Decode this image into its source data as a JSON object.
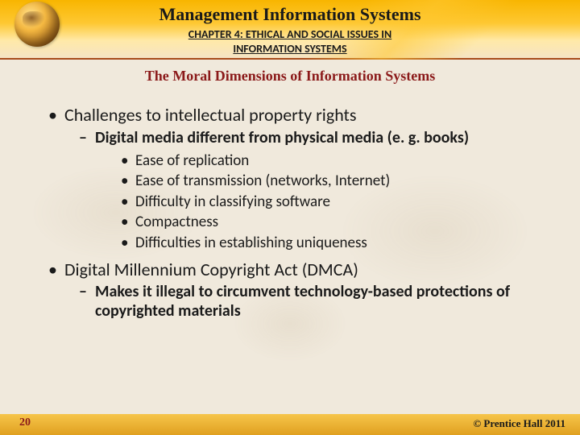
{
  "header": {
    "title": "Management Information Systems",
    "chapter_line1": "CHAPTER 4: ETHICAL AND SOCIAL ISSUES IN",
    "chapter_line2": "INFORMATION SYSTEMS"
  },
  "subtitle": "The Moral Dimensions of Information Systems",
  "bullets": {
    "b1": "Challenges to intellectual property rights",
    "b1_1": "Digital media different from physical media (e. g. books)",
    "b1_1_items": {
      "i1": "Ease of replication",
      "i2": "Ease of transmission (networks, Internet)",
      "i3": "Difficulty in classifying software",
      "i4": "Compactness",
      "i5": "Difficulties in establishing uniqueness"
    },
    "b2": "Digital Millennium Copyright Act (DMCA)",
    "b2_1": "Makes it illegal to circumvent technology-based protections of copyrighted materials"
  },
  "footer": {
    "page": "20",
    "copyright": "© Prentice Hall 2011"
  },
  "colors": {
    "background": "#f0e9dc",
    "accent_red": "#8b1a1a",
    "accent_gold": "#f5b942",
    "text": "#1a1a1a"
  }
}
